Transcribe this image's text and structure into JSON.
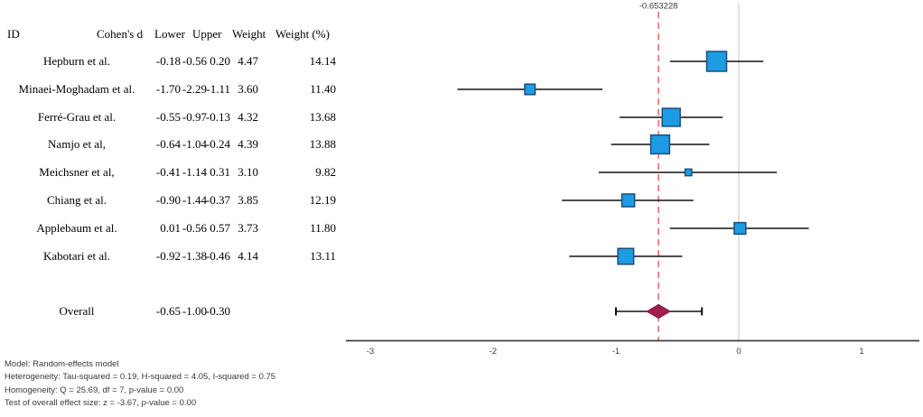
{
  "table": {
    "columns": [
      "ID",
      "Cohen's d",
      "Lower",
      "Upper",
      "Weight",
      "Weight (%)"
    ],
    "rows": [
      {
        "name": "Hepburn et al.",
        "d": "-0.18",
        "lower": "-0.56",
        "upper": "0.20",
        "weight": "4.47",
        "weight_pct": "14.14"
      },
      {
        "name": "Minaei-Moghadam et al.",
        "d": "-1.70",
        "lower": "-2.29",
        "upper": "-1.11",
        "weight": "3.60",
        "weight_pct": "11.40"
      },
      {
        "name": "Ferré-Grau et al.",
        "d": "-0.55",
        "lower": "-0.97",
        "upper": "-0.13",
        "weight": "4.32",
        "weight_pct": "13.68"
      },
      {
        "name": "Namjo et al,",
        "d": "-0.64",
        "lower": "-1.04",
        "upper": "-0.24",
        "weight": "4.39",
        "weight_pct": "13.88"
      },
      {
        "name": "Meichsner et al,",
        "d": "-0.41",
        "lower": "-1.14",
        "upper": "0.31",
        "weight": "3.10",
        "weight_pct": "9.82"
      },
      {
        "name": "Chiang et al.",
        "d": "-0.90",
        "lower": "-1.44",
        "upper": "-0.37",
        "weight": "3.85",
        "weight_pct": "12.19"
      },
      {
        "name": "Applebaum et al.",
        "d": "0.01",
        "lower": "-0.56",
        "upper": "0.57",
        "weight": "3.73",
        "weight_pct": "11.80"
      },
      {
        "name": "Kabotari et al.",
        "d": "-0.92",
        "lower": "-1.38",
        "upper": "-0.46",
        "weight": "4.14",
        "weight_pct": "13.11"
      }
    ],
    "overall": {
      "name": "Overall",
      "d": "-0.65",
      "lower": "-1.00",
      "upper": "-0.30"
    }
  },
  "notes": [
    "Model: Random-effects model",
    "Heterogeneity: Tau-squared = 0.19, H-squared = 4.05, I-squared = 0.75",
    "Homogeneity: Q = 25.69, df = 7, p-value = 0.00",
    "Test of overall effect size: z = -3.67, p-value = 0.00"
  ],
  "chart_data": {
    "type": "forest",
    "title": "",
    "xlabel": "",
    "x_ticks": [
      -3,
      -2,
      -1,
      0,
      1
    ],
    "x_range": [
      -3.2,
      1.5
    ],
    "reference_line": {
      "value": -0.653228,
      "label": "-0.653228",
      "style": "dashed",
      "color": "#e8473c"
    },
    "zero_line": {
      "value": 0,
      "color": "#d8d8d8"
    },
    "marker_fill": "#1d9be3",
    "marker_border": "#1b4e79",
    "ci_color": "#111111",
    "diamond_fill": "#a21c4f",
    "diamond_border": "#7d1540",
    "axis_color": "#3f3f3f",
    "studies": [
      {
        "name": "Hepburn et al.",
        "d": -0.18,
        "lower": -0.56,
        "upper": 0.2,
        "weight": 4.47,
        "weight_pct": 14.14
      },
      {
        "name": "Minaei-Moghadam et al.",
        "d": -1.7,
        "lower": -2.29,
        "upper": -1.11,
        "weight": 3.6,
        "weight_pct": 11.4
      },
      {
        "name": "Ferré-Grau et al.",
        "d": -0.55,
        "lower": -0.97,
        "upper": -0.13,
        "weight": 4.32,
        "weight_pct": 13.68
      },
      {
        "name": "Namjo et al,",
        "d": -0.64,
        "lower": -1.04,
        "upper": -0.24,
        "weight": 4.39,
        "weight_pct": 13.88
      },
      {
        "name": "Meichsner et al,",
        "d": -0.41,
        "lower": -1.14,
        "upper": 0.31,
        "weight": 3.1,
        "weight_pct": 9.82
      },
      {
        "name": "Chiang et al.",
        "d": -0.9,
        "lower": -1.44,
        "upper": -0.37,
        "weight": 3.85,
        "weight_pct": 12.19
      },
      {
        "name": "Applebaum et al.",
        "d": 0.01,
        "lower": -0.56,
        "upper": 0.57,
        "weight": 3.73,
        "weight_pct": 11.8
      },
      {
        "name": "Kabotari et al.",
        "d": -0.92,
        "lower": -1.38,
        "upper": -0.46,
        "weight": 4.14,
        "weight_pct": 13.11
      }
    ],
    "overall": {
      "name": "Overall",
      "d": -0.65,
      "lower": -1.0,
      "upper": -0.3
    }
  }
}
